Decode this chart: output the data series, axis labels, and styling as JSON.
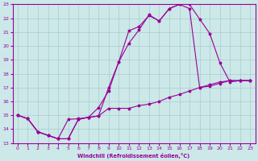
{
  "background_color": "#cce8e8",
  "grid_color": "#aacccc",
  "line_color": "#990099",
  "xlabel": "Windchill (Refroidissement éolien,°C)",
  "xlim": [
    -0.5,
    23.5
  ],
  "ylim": [
    13,
    23
  ],
  "yticks": [
    13,
    14,
    15,
    16,
    17,
    18,
    19,
    20,
    21,
    22,
    23
  ],
  "xticks": [
    0,
    1,
    2,
    3,
    4,
    5,
    6,
    7,
    8,
    9,
    10,
    11,
    12,
    13,
    14,
    15,
    16,
    17,
    18,
    19,
    20,
    21,
    22,
    23
  ],
  "curve1_x": [
    0,
    1,
    2,
    3,
    4,
    5,
    6,
    7,
    8,
    9,
    10,
    11,
    12,
    13,
    14,
    15,
    16,
    17,
    18,
    19,
    20,
    21,
    22,
    23
  ],
  "curve1_y": [
    15.0,
    14.75,
    13.8,
    13.55,
    13.3,
    14.7,
    14.75,
    14.85,
    14.95,
    17.0,
    18.85,
    21.1,
    21.4,
    22.2,
    21.8,
    22.7,
    23.0,
    22.7,
    17.0,
    17.1,
    17.3,
    17.5,
    17.5,
    17.5
  ],
  "curve2_x": [
    0,
    1,
    2,
    3,
    4,
    5,
    6,
    7,
    8,
    9,
    10,
    11,
    12,
    13,
    14,
    15,
    16,
    17,
    18,
    19,
    20,
    21,
    22,
    23
  ],
  "curve2_y": [
    15.0,
    14.75,
    13.8,
    13.55,
    13.3,
    13.3,
    14.7,
    14.85,
    15.55,
    16.75,
    18.85,
    20.2,
    21.15,
    22.25,
    21.8,
    22.7,
    23.0,
    23.0,
    21.95,
    20.9,
    18.8,
    17.4,
    17.5,
    17.5
  ],
  "curve3_x": [
    0,
    1,
    2,
    3,
    4,
    5,
    6,
    7,
    8,
    9,
    10,
    11,
    12,
    13,
    14,
    15,
    16,
    17,
    18,
    19,
    20,
    21,
    22,
    23
  ],
  "curve3_y": [
    15.0,
    14.75,
    13.8,
    13.55,
    13.3,
    13.3,
    14.7,
    14.85,
    14.95,
    15.5,
    15.5,
    15.5,
    15.7,
    15.8,
    16.0,
    16.3,
    16.5,
    16.75,
    17.0,
    17.2,
    17.4,
    17.5,
    17.5,
    17.5
  ]
}
